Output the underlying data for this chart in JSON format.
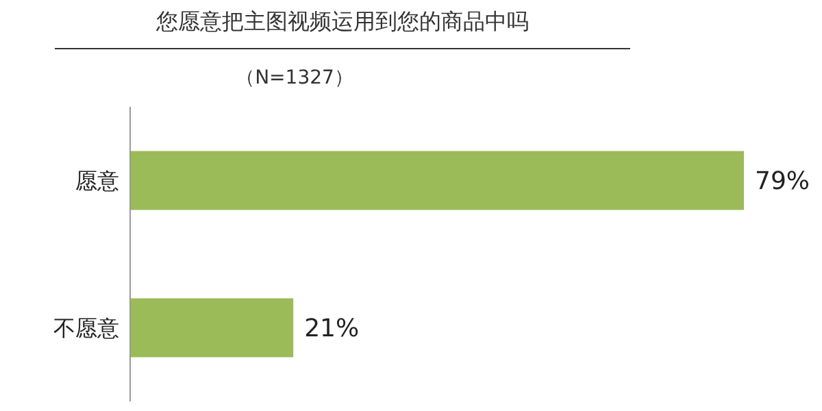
{
  "chart_data": {
    "type": "bar",
    "orientation": "horizontal",
    "title": "您愿意把主图视频运用到您的商品中吗",
    "subtitle": "（N=1327）",
    "categories": [
      "愿意",
      "不愿意"
    ],
    "values": [
      79,
      21
    ],
    "value_labels": [
      "79%",
      "21%"
    ],
    "color": "#9bbb59"
  }
}
